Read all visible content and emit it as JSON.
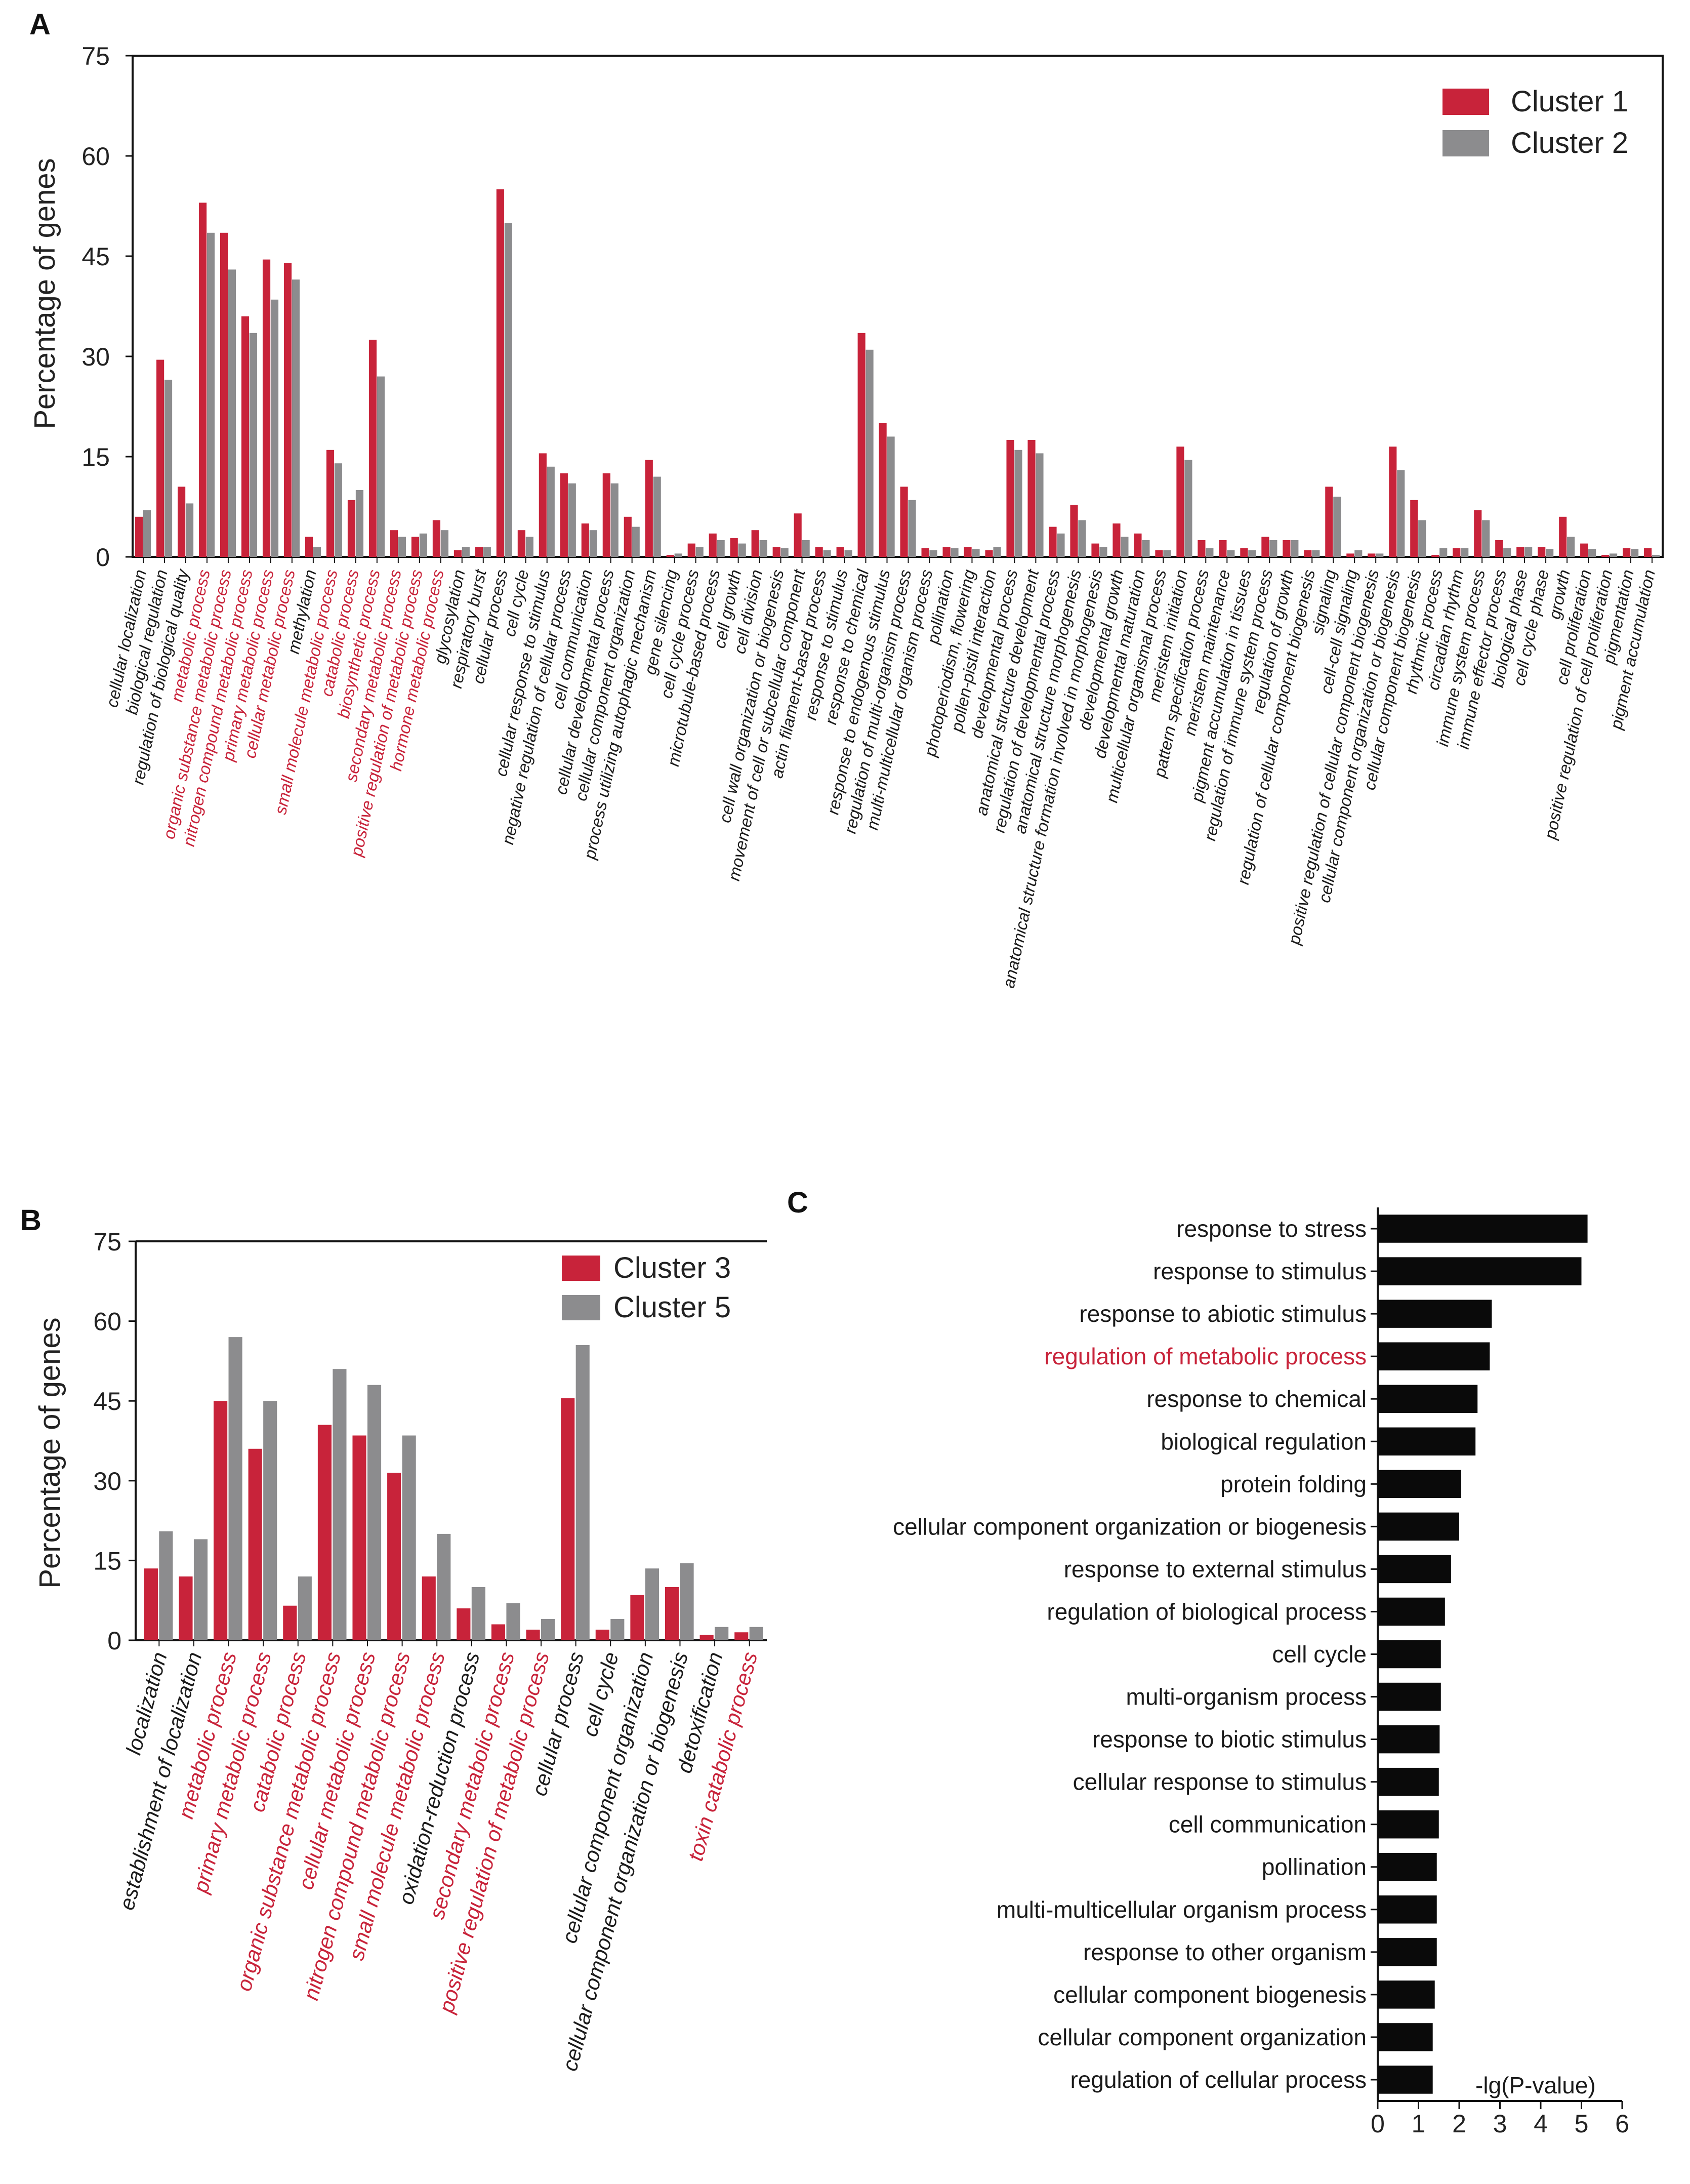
{
  "colors": {
    "red": "#C8233A",
    "grey": "#8C8C8E",
    "black": "#0A0A0A",
    "text": "#1A1A1A"
  },
  "chart_data": [
    {
      "panel": "A",
      "type": "bar",
      "ylabel": "Percentage of genes",
      "ylim": [
        0,
        75
      ],
      "yticks": [
        0,
        15,
        30,
        45,
        60,
        75
      ],
      "legend_position": "top-right",
      "categories": [
        {
          "label": "cellular localization",
          "highlight": false
        },
        {
          "label": "biological regulation",
          "highlight": false
        },
        {
          "label": "regulation of biological quality",
          "highlight": false
        },
        {
          "label": "metabolic process",
          "highlight": true
        },
        {
          "label": "organic substance metabolic process",
          "highlight": true
        },
        {
          "label": "nitrogen compound metabolic process",
          "highlight": true
        },
        {
          "label": "primary metabolic process",
          "highlight": true
        },
        {
          "label": "cellular metabolic process",
          "highlight": true
        },
        {
          "label": "methylation",
          "highlight": false
        },
        {
          "label": "small molecule metabolic process",
          "highlight": true
        },
        {
          "label": "catabolic process",
          "highlight": true
        },
        {
          "label": "biosynthetic process",
          "highlight": true
        },
        {
          "label": "secondary metabolic process",
          "highlight": true
        },
        {
          "label": "positive regulation of metabolic process",
          "highlight": true
        },
        {
          "label": "hormone metabolic process",
          "highlight": true
        },
        {
          "label": "glycosylation",
          "highlight": false
        },
        {
          "label": "respiratory burst",
          "highlight": false
        },
        {
          "label": "cellular process",
          "highlight": false
        },
        {
          "label": "cell cycle",
          "highlight": false
        },
        {
          "label": "cellular response to stimulus",
          "highlight": false
        },
        {
          "label": "negative regulation of cellular process",
          "highlight": false
        },
        {
          "label": "cell communication",
          "highlight": false
        },
        {
          "label": "cellular developmental process",
          "highlight": false
        },
        {
          "label": "cellular component organization",
          "highlight": false
        },
        {
          "label": "process utilizing autophagic mechanism",
          "highlight": false
        },
        {
          "label": "gene silencing",
          "highlight": false
        },
        {
          "label": "cell cycle process",
          "highlight": false
        },
        {
          "label": "microtubule-based process",
          "highlight": false
        },
        {
          "label": "cell growth",
          "highlight": false
        },
        {
          "label": "cell division",
          "highlight": false
        },
        {
          "label": "cell wall organization or biogenesis",
          "highlight": false
        },
        {
          "label": "movement of cell or subcellular component",
          "highlight": false
        },
        {
          "label": "actin filament-based process",
          "highlight": false
        },
        {
          "label": "response to stimulus",
          "highlight": false
        },
        {
          "label": "response to chemical",
          "highlight": false
        },
        {
          "label": "response to endogenous stimulus",
          "highlight": false
        },
        {
          "label": "regulation of multi-organism process",
          "highlight": false
        },
        {
          "label": "multi-multicellular organism process",
          "highlight": false
        },
        {
          "label": "pollination",
          "highlight": false
        },
        {
          "label": "photoperiodism, flowering",
          "highlight": false
        },
        {
          "label": "pollen-pistil interaction",
          "highlight": false
        },
        {
          "label": "developmental process",
          "highlight": false
        },
        {
          "label": "anatomical structure development",
          "highlight": false
        },
        {
          "label": "regulation of developmental process",
          "highlight": false
        },
        {
          "label": "anatomical structure morphogenesis",
          "highlight": false
        },
        {
          "label": "anatomical structure formation involved in morphogenesis",
          "highlight": false
        },
        {
          "label": "developmental growth",
          "highlight": false
        },
        {
          "label": "developmental maturation",
          "highlight": false
        },
        {
          "label": "multicellular organismal process",
          "highlight": false
        },
        {
          "label": "meristem initiation",
          "highlight": false
        },
        {
          "label": "pattern specification process",
          "highlight": false
        },
        {
          "label": "meristem maintenance",
          "highlight": false
        },
        {
          "label": "pigment accumulation in tissues",
          "highlight": false
        },
        {
          "label": "regulation of immune system process",
          "highlight": false
        },
        {
          "label": "regulation of growth",
          "highlight": false
        },
        {
          "label": "regulation of cellular component biogenesis",
          "highlight": false
        },
        {
          "label": "signaling",
          "highlight": false
        },
        {
          "label": "cell-cell signaling",
          "highlight": false
        },
        {
          "label": "positive regulation of cellular component biogenesis",
          "highlight": false
        },
        {
          "label": "cellular component organization or biogenesis",
          "highlight": false
        },
        {
          "label": "cellular component biogenesis",
          "highlight": false
        },
        {
          "label": "rhythmic process",
          "highlight": false
        },
        {
          "label": "circadian rhythm",
          "highlight": false
        },
        {
          "label": "immune system process",
          "highlight": false
        },
        {
          "label": "immune effector process",
          "highlight": false
        },
        {
          "label": "biological phase",
          "highlight": false
        },
        {
          "label": "cell cycle phase",
          "highlight": false
        },
        {
          "label": "growth",
          "highlight": false
        },
        {
          "label": "cell proliferation",
          "highlight": false
        },
        {
          "label": "positive regulation of cell proliferation",
          "highlight": false
        },
        {
          "label": "pigmentation",
          "highlight": false
        },
        {
          "label": "pigment accumulation",
          "highlight": false
        }
      ],
      "series": [
        {
          "name": "Cluster 1",
          "color": "#C8233A",
          "values": [
            6,
            29.5,
            10.5,
            53,
            48.5,
            36,
            44.5,
            44,
            3,
            16,
            8.5,
            32.5,
            4,
            3,
            5.5,
            1,
            1.5,
            55,
            4,
            15.5,
            12.5,
            5,
            12.5,
            6,
            14.5,
            0.3,
            2,
            3.5,
            2.8,
            4,
            1.5,
            6.5,
            1.5,
            1.5,
            33.5,
            20,
            10.5,
            1.3,
            1.5,
            1.5,
            1,
            17.5,
            17.5,
            4.5,
            7.8,
            2,
            5,
            3.5,
            1,
            16.5,
            2.5,
            2.5,
            1.3,
            3,
            2.5,
            1,
            10.5,
            0.5,
            0.5,
            16.5,
            8.5,
            0.3,
            1.3,
            7,
            2.5,
            1.5,
            1.5,
            6,
            2,
            0.3,
            1.3,
            1.3
          ]
        },
        {
          "name": "Cluster 2",
          "color": "#8C8C8E",
          "values": [
            7,
            26.5,
            8,
            48.5,
            43,
            33.5,
            38.5,
            41.5,
            1.5,
            14,
            10,
            27,
            3,
            3.5,
            4,
            1.5,
            1.5,
            50,
            3,
            13.5,
            11,
            4,
            11,
            4.5,
            12,
            0.5,
            1.5,
            2.5,
            2,
            2.5,
            1.3,
            2.5,
            1,
            1,
            31,
            18,
            8.5,
            1,
            1.3,
            1.2,
            1.5,
            16,
            15.5,
            3.5,
            5.5,
            1.5,
            3,
            2.5,
            1,
            14.5,
            1.3,
            1,
            1,
            2.5,
            2.5,
            1,
            9,
            1,
            0.5,
            13,
            5.5,
            1.3,
            1.3,
            5.5,
            1.3,
            1.5,
            1.2,
            3,
            1.2,
            0.5,
            1.2,
            0.3
          ]
        }
      ]
    },
    {
      "panel": "B",
      "type": "bar",
      "ylabel": "Percentage of genes",
      "ylim": [
        0,
        75
      ],
      "yticks": [
        0,
        15,
        30,
        45,
        60,
        75
      ],
      "legend_position": "top-right",
      "categories": [
        {
          "label": "localization",
          "highlight": false
        },
        {
          "label": "establishment of localization",
          "highlight": false
        },
        {
          "label": "metabolic process",
          "highlight": true
        },
        {
          "label": "primary metabolic process",
          "highlight": true
        },
        {
          "label": "catabolic process",
          "highlight": true
        },
        {
          "label": "organic substance metabolic process",
          "highlight": true
        },
        {
          "label": "cellular metabolic process",
          "highlight": true
        },
        {
          "label": "nitrogen compound metabolic process",
          "highlight": true
        },
        {
          "label": "small molecule metabolic process",
          "highlight": true
        },
        {
          "label": "oxidation-reduction process",
          "highlight": false
        },
        {
          "label": "secondary metabolic process",
          "highlight": true
        },
        {
          "label": "positive regulation of metabolic process",
          "highlight": true
        },
        {
          "label": "cellular process",
          "highlight": false
        },
        {
          "label": "cell cycle",
          "highlight": false
        },
        {
          "label": "cellular component organization",
          "highlight": false
        },
        {
          "label": "cellular component organization or biogenesis",
          "highlight": false
        },
        {
          "label": "detoxification",
          "highlight": false
        },
        {
          "label": "toxin catabolic process",
          "highlight": true
        }
      ],
      "series": [
        {
          "name": "Cluster 3",
          "color": "#C8233A",
          "values": [
            13.5,
            12,
            45,
            36,
            6.5,
            40.5,
            38.5,
            31.5,
            12,
            6,
            3,
            2,
            45.5,
            2,
            8.5,
            10,
            1,
            1.5
          ]
        },
        {
          "name": "Cluster 5",
          "color": "#8C8C8E",
          "values": [
            20.5,
            19,
            57,
            45,
            12,
            51,
            48,
            38.5,
            20,
            10,
            7,
            4,
            55.5,
            4,
            13.5,
            14.5,
            2.5,
            2.5
          ]
        }
      ]
    },
    {
      "panel": "C",
      "type": "bar",
      "orientation": "horizontal",
      "xlabel": "-lg(P-value)",
      "xlim": [
        0,
        6
      ],
      "xticks": [
        0,
        1,
        2,
        3,
        4,
        5,
        6
      ],
      "categories": [
        {
          "label": "response to stress",
          "highlight": false
        },
        {
          "label": "response to stimulus",
          "highlight": false
        },
        {
          "label": "response to abiotic stimulus",
          "highlight": false
        },
        {
          "label": "regulation of metabolic process",
          "highlight": true
        },
        {
          "label": "response to chemical",
          "highlight": false
        },
        {
          "label": "biological regulation",
          "highlight": false
        },
        {
          "label": "protein folding",
          "highlight": false
        },
        {
          "label": "cellular component organization or biogenesis",
          "highlight": false
        },
        {
          "label": "response to external stimulus",
          "highlight": false
        },
        {
          "label": "regulation of biological process",
          "highlight": false
        },
        {
          "label": "cell cycle",
          "highlight": false
        },
        {
          "label": "multi-organism process",
          "highlight": false
        },
        {
          "label": "response to biotic stimulus",
          "highlight": false
        },
        {
          "label": "cellular response to stimulus",
          "highlight": false
        },
        {
          "label": "cell communication",
          "highlight": false
        },
        {
          "label": "pollination",
          "highlight": false
        },
        {
          "label": "multi-multicellular organism process",
          "highlight": false
        },
        {
          "label": "response to other organism",
          "highlight": false
        },
        {
          "label": "cellular component biogenesis",
          "highlight": false
        },
        {
          "label": "cellular component organization",
          "highlight": false
        },
        {
          "label": "regulation of cellular process",
          "highlight": false
        }
      ],
      "values": [
        5.15,
        5.0,
        2.8,
        2.75,
        2.45,
        2.4,
        2.05,
        2.0,
        1.8,
        1.65,
        1.55,
        1.55,
        1.52,
        1.5,
        1.5,
        1.45,
        1.45,
        1.45,
        1.4,
        1.35,
        1.35
      ]
    }
  ]
}
